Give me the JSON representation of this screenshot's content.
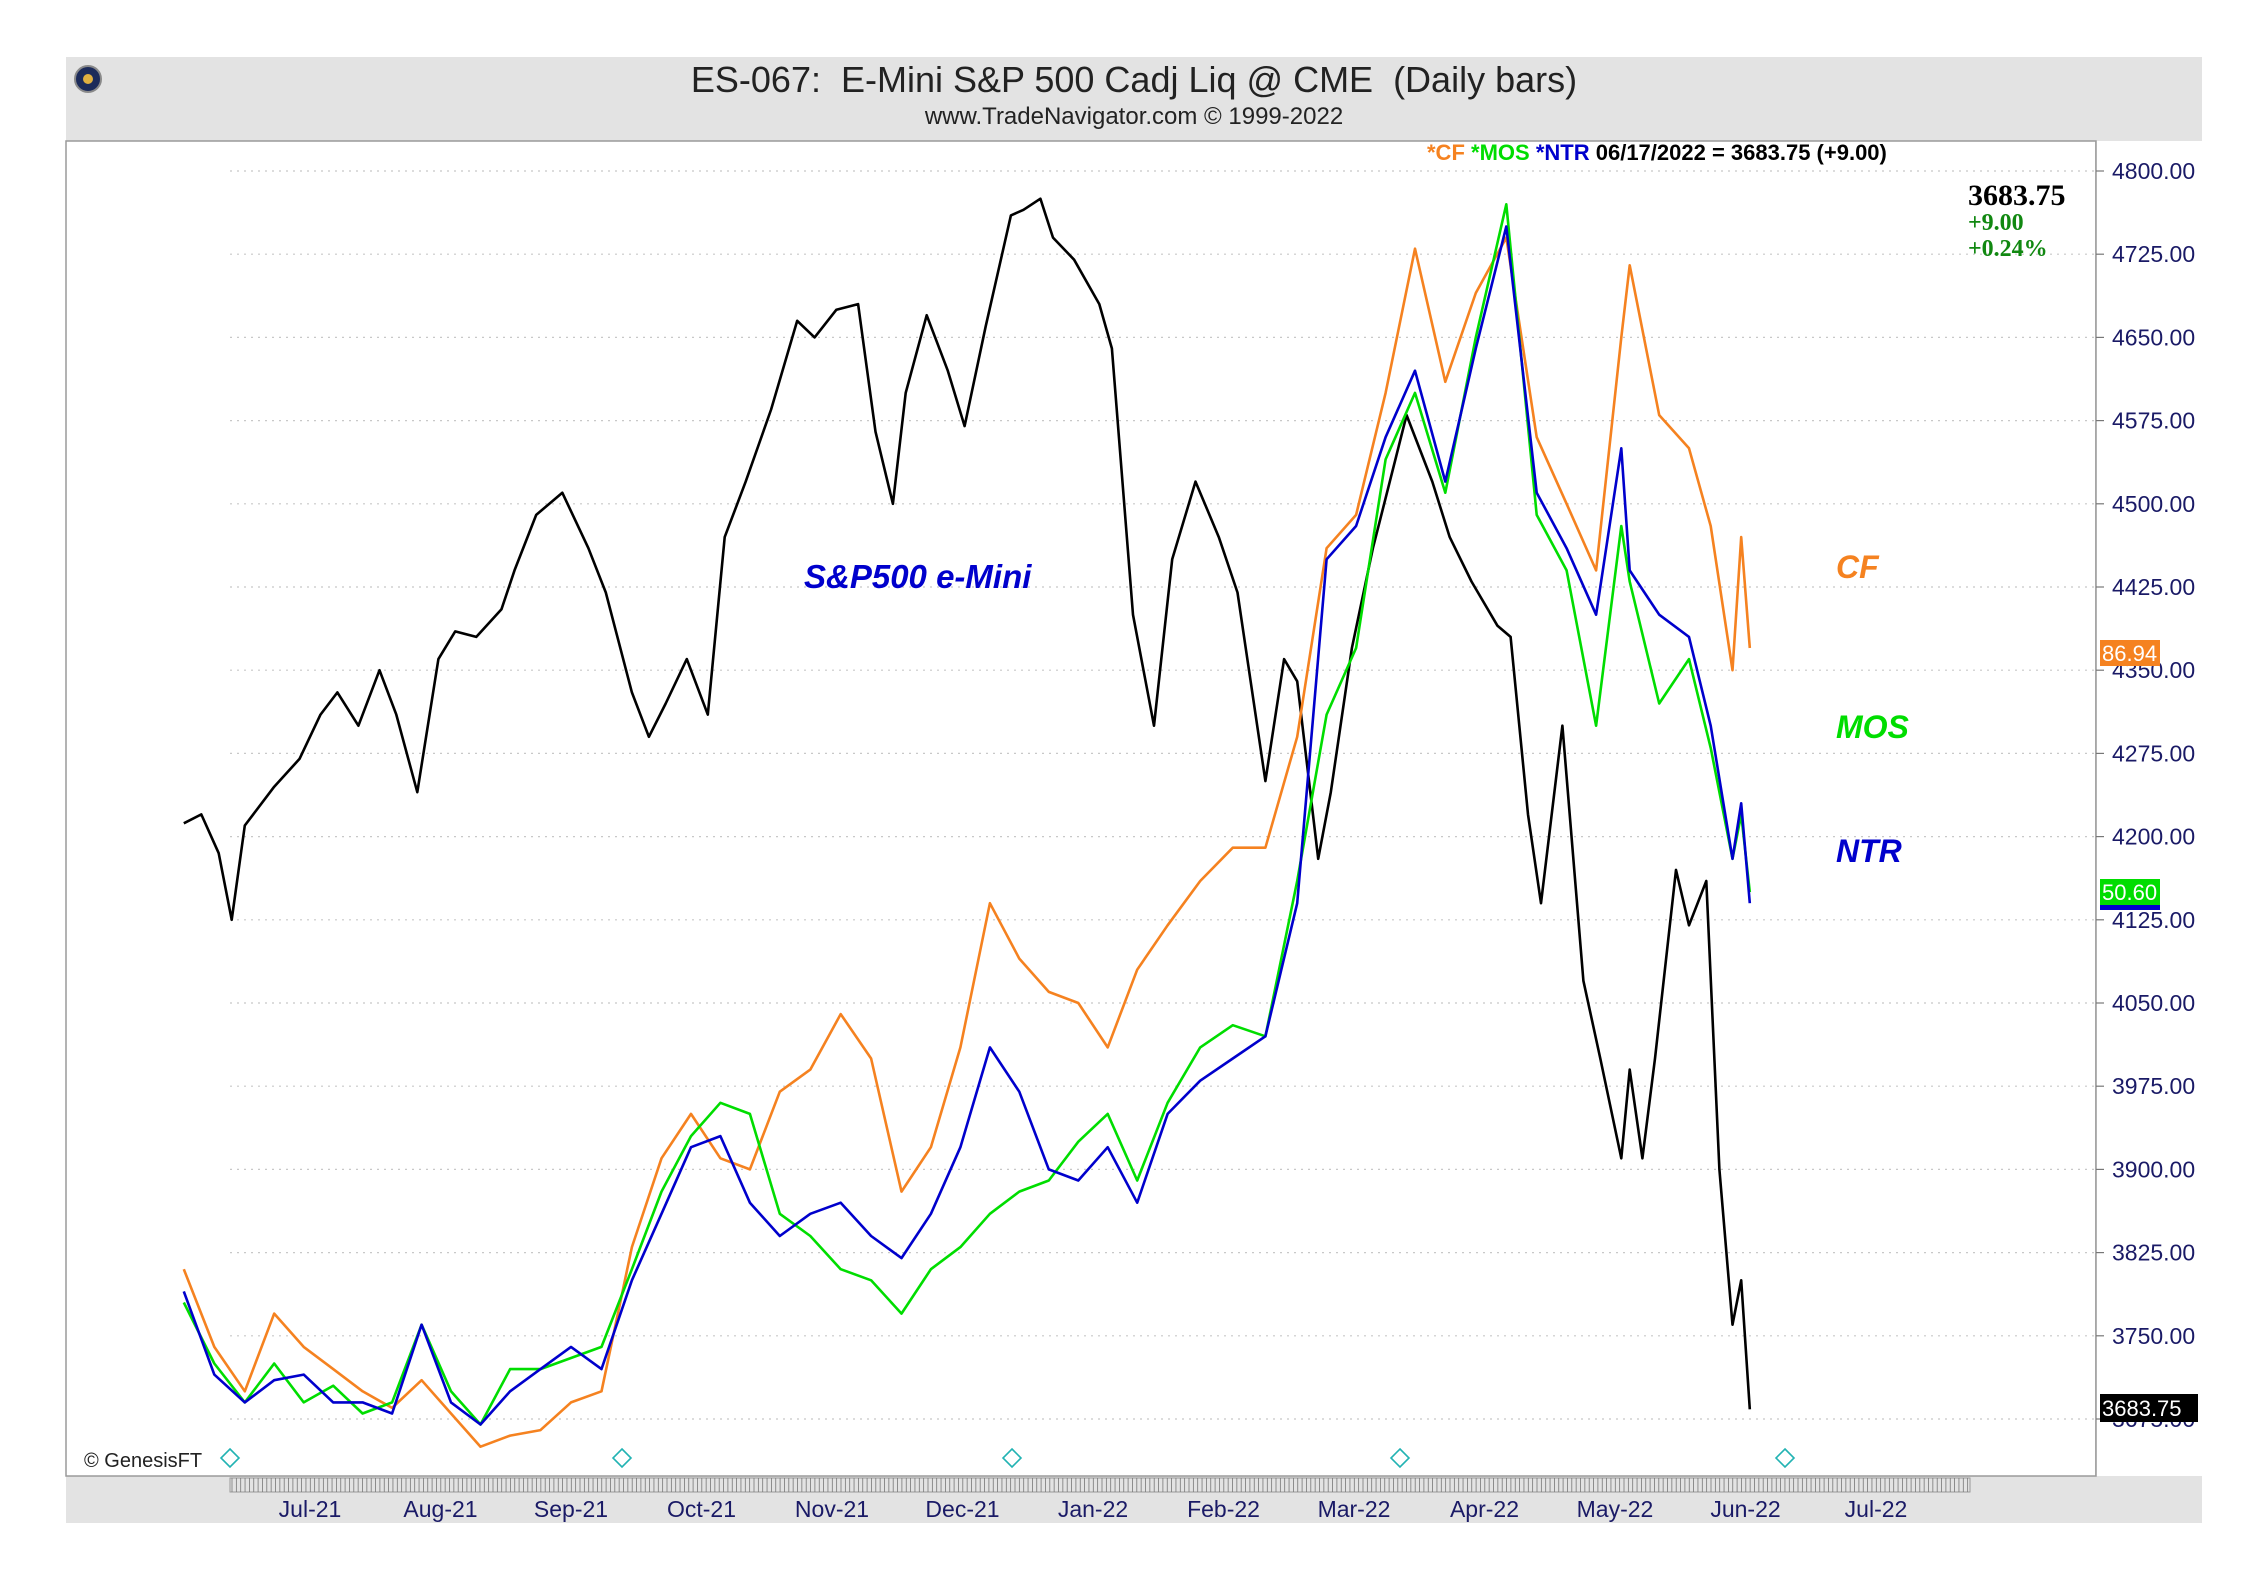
{
  "header": {
    "title": "ES-067:  E-Mini S&P 500 Cadj Liq @ CME  (Daily bars)",
    "subtitle": "www.TradeNavigator.com © 1999-2022"
  },
  "legend": {
    "cf": "*CF",
    "mos": "*MOS",
    "ntr": "*NTR",
    "readout": "06/17/2022 = 3683.75 (+9.00)"
  },
  "quote": {
    "last": "3683.75",
    "change": "+9.00",
    "pct": "+0.24%"
  },
  "labels": {
    "sp500": "S&P500 e-Mini",
    "cf": "CF",
    "mos": "MOS",
    "ntr": "NTR"
  },
  "badges": {
    "cf": "86.94",
    "mos": "50.60",
    "es": "3683.75"
  },
  "copyright": "© GenesisFT",
  "colors": {
    "es": "#000000",
    "cf": "#f58220",
    "mos": "#00dd00",
    "ntr": "#0000cc",
    "axis_text": "#1a1a66"
  },
  "chart_data": {
    "type": "line",
    "x_axis": {
      "ticks": [
        "Jul-21",
        "Aug-21",
        "Sep-21",
        "Oct-21",
        "Nov-21",
        "Dec-21",
        "Jan-22",
        "Feb-22",
        "Mar-22",
        "Apr-22",
        "May-22",
        "Jun-22",
        "Jul-22"
      ]
    },
    "y_axis": {
      "range": [
        3610,
        4810
      ],
      "ticks": [
        "4800.00",
        "4725.00",
        "4650.00",
        "4575.00",
        "4500.00",
        "4425.00",
        "4350.00",
        "4275.00",
        "4200.00",
        "4125.00",
        "4050.00",
        "3975.00",
        "3900.00",
        "3825.00",
        "3750.00",
        "3675.00"
      ]
    },
    "grid": true,
    "series": [
      {
        "name": "S&P500 e-Mini",
        "points": [
          [
            "2021-06-17",
            4212
          ],
          [
            "2021-06-21",
            4220
          ],
          [
            "2021-06-25",
            4185
          ],
          [
            "2021-06-28",
            4125
          ],
          [
            "2021-07-01",
            4210
          ],
          [
            "2021-07-08",
            4245
          ],
          [
            "2021-07-14",
            4270
          ],
          [
            "2021-07-19",
            4310
          ],
          [
            "2021-07-23",
            4330
          ],
          [
            "2021-07-28",
            4300
          ],
          [
            "2021-08-02",
            4350
          ],
          [
            "2021-08-06",
            4310
          ],
          [
            "2021-08-11",
            4240
          ],
          [
            "2021-08-16",
            4360
          ],
          [
            "2021-08-20",
            4385
          ],
          [
            "2021-08-25",
            4380
          ],
          [
            "2021-08-31",
            4405
          ],
          [
            "2021-09-03",
            4440
          ],
          [
            "2021-09-08",
            4490
          ],
          [
            "2021-09-14",
            4510
          ],
          [
            "2021-09-20",
            4460
          ],
          [
            "2021-09-24",
            4420
          ],
          [
            "2021-09-30",
            4330
          ],
          [
            "2021-10-04",
            4290
          ],
          [
            "2021-10-08",
            4320
          ],
          [
            "2021-10-13",
            4360
          ],
          [
            "2021-10-18",
            4310
          ],
          [
            "2021-10-22",
            4470
          ],
          [
            "2021-10-27",
            4520
          ],
          [
            "2021-11-02",
            4585
          ],
          [
            "2021-11-08",
            4665
          ],
          [
            "2021-11-12",
            4650
          ],
          [
            "2021-11-17",
            4675
          ],
          [
            "2021-11-22",
            4680
          ],
          [
            "2021-11-26",
            4565
          ],
          [
            "2021-11-30",
            4500
          ],
          [
            "2021-12-03",
            4600
          ],
          [
            "2021-12-08",
            4670
          ],
          [
            "2021-12-13",
            4620
          ],
          [
            "2021-12-17",
            4570
          ],
          [
            "2021-12-22",
            4660
          ],
          [
            "2021-12-28",
            4760
          ],
          [
            "2021-12-31",
            4765
          ],
          [
            "2022-01-04",
            4775
          ],
          [
            "2022-01-07",
            4740
          ],
          [
            "2022-01-12",
            4720
          ],
          [
            "2022-01-18",
            4680
          ],
          [
            "2022-01-21",
            4640
          ],
          [
            "2022-01-26",
            4400
          ],
          [
            "2022-01-31",
            4300
          ],
          [
            "2022-02-04",
            4450
          ],
          [
            "2022-02-09",
            4520
          ],
          [
            "2022-02-14",
            4470
          ],
          [
            "2022-02-18",
            4420
          ],
          [
            "2022-02-24",
            4250
          ],
          [
            "2022-02-28",
            4360
          ],
          [
            "2022-03-03",
            4340
          ],
          [
            "2022-03-08",
            4180
          ],
          [
            "2022-03-11",
            4240
          ],
          [
            "2022-03-16",
            4370
          ],
          [
            "2022-03-21",
            4460
          ],
          [
            "2022-03-25",
            4520
          ],
          [
            "2022-03-29",
            4580
          ],
          [
            "2022-04-04",
            4520
          ],
          [
            "2022-04-08",
            4470
          ],
          [
            "2022-04-13",
            4430
          ],
          [
            "2022-04-19",
            4390
          ],
          [
            "2022-04-22",
            4380
          ],
          [
            "2022-04-26",
            4220
          ],
          [
            "2022-04-29",
            4140
          ],
          [
            "2022-05-04",
            4300
          ],
          [
            "2022-05-09",
            4070
          ],
          [
            "2022-05-13",
            4000
          ],
          [
            "2022-05-18",
            3910
          ],
          [
            "2022-05-20",
            3990
          ],
          [
            "2022-05-23",
            3910
          ],
          [
            "2022-05-26",
            4000
          ],
          [
            "2022-05-31",
            4170
          ],
          [
            "2022-06-03",
            4120
          ],
          [
            "2022-06-07",
            4160
          ],
          [
            "2022-06-10",
            3900
          ],
          [
            "2022-06-13",
            3760
          ],
          [
            "2022-06-15",
            3800
          ],
          [
            "2022-06-17",
            3683.75
          ]
        ]
      },
      {
        "name": "CF",
        "points": [
          [
            "2021-06-17",
            3810
          ],
          [
            "2021-06-24",
            3740
          ],
          [
            "2021-07-01",
            3700
          ],
          [
            "2021-07-08",
            3770
          ],
          [
            "2021-07-15",
            3740
          ],
          [
            "2021-07-22",
            3720
          ],
          [
            "2021-07-29",
            3700
          ],
          [
            "2021-08-05",
            3685
          ],
          [
            "2021-08-12",
            3710
          ],
          [
            "2021-08-19",
            3680
          ],
          [
            "2021-08-26",
            3650
          ],
          [
            "2021-09-02",
            3660
          ],
          [
            "2021-09-09",
            3665
          ],
          [
            "2021-09-16",
            3690
          ],
          [
            "2021-09-23",
            3700
          ],
          [
            "2021-09-30",
            3830
          ],
          [
            "2021-10-07",
            3910
          ],
          [
            "2021-10-14",
            3950
          ],
          [
            "2021-10-21",
            3910
          ],
          [
            "2021-10-28",
            3900
          ],
          [
            "2021-11-04",
            3970
          ],
          [
            "2021-11-11",
            3990
          ],
          [
            "2021-11-18",
            4040
          ],
          [
            "2021-11-25",
            4000
          ],
          [
            "2021-12-02",
            3880
          ],
          [
            "2021-12-09",
            3920
          ],
          [
            "2021-12-16",
            4010
          ],
          [
            "2021-12-23",
            4140
          ],
          [
            "2021-12-30",
            4090
          ],
          [
            "2022-01-06",
            4060
          ],
          [
            "2022-01-13",
            4050
          ],
          [
            "2022-01-20",
            4010
          ],
          [
            "2022-01-27",
            4080
          ],
          [
            "2022-02-03",
            4120
          ],
          [
            "2022-02-10",
            4160
          ],
          [
            "2022-02-17",
            4190
          ],
          [
            "2022-02-24",
            4190
          ],
          [
            "2022-03-03",
            4290
          ],
          [
            "2022-03-10",
            4460
          ],
          [
            "2022-03-17",
            4490
          ],
          [
            "2022-03-24",
            4600
          ],
          [
            "2022-03-31",
            4730
          ],
          [
            "2022-04-07",
            4610
          ],
          [
            "2022-04-14",
            4690
          ],
          [
            "2022-04-21",
            4740
          ],
          [
            "2022-04-28",
            4560
          ],
          [
            "2022-05-05",
            4500
          ],
          [
            "2022-05-12",
            4440
          ],
          [
            "2022-05-18",
            4650
          ],
          [
            "2022-05-20",
            4715
          ],
          [
            "2022-05-27",
            4580
          ],
          [
            "2022-06-03",
            4550
          ],
          [
            "2022-06-08",
            4480
          ],
          [
            "2022-06-13",
            4350
          ],
          [
            "2022-06-15",
            4470
          ],
          [
            "2022-06-17",
            4370
          ]
        ]
      },
      {
        "name": "MOS",
        "points": [
          [
            "2021-06-17",
            3780
          ],
          [
            "2021-06-24",
            3725
          ],
          [
            "2021-07-01",
            3690
          ],
          [
            "2021-07-08",
            3725
          ],
          [
            "2021-07-15",
            3690
          ],
          [
            "2021-07-22",
            3705
          ],
          [
            "2021-07-29",
            3680
          ],
          [
            "2021-08-05",
            3690
          ],
          [
            "2021-08-12",
            3760
          ],
          [
            "2021-08-19",
            3700
          ],
          [
            "2021-08-26",
            3670
          ],
          [
            "2021-09-02",
            3720
          ],
          [
            "2021-09-09",
            3720
          ],
          [
            "2021-09-16",
            3730
          ],
          [
            "2021-09-23",
            3740
          ],
          [
            "2021-09-30",
            3810
          ],
          [
            "2021-10-07",
            3880
          ],
          [
            "2021-10-14",
            3930
          ],
          [
            "2021-10-21",
            3960
          ],
          [
            "2021-10-28",
            3950
          ],
          [
            "2021-11-04",
            3860
          ],
          [
            "2021-11-11",
            3840
          ],
          [
            "2021-11-18",
            3810
          ],
          [
            "2021-11-25",
            3800
          ],
          [
            "2021-12-02",
            3770
          ],
          [
            "2021-12-09",
            3810
          ],
          [
            "2021-12-16",
            3830
          ],
          [
            "2021-12-23",
            3860
          ],
          [
            "2021-12-30",
            3880
          ],
          [
            "2022-01-06",
            3890
          ],
          [
            "2022-01-13",
            3925
          ],
          [
            "2022-01-20",
            3950
          ],
          [
            "2022-01-27",
            3890
          ],
          [
            "2022-02-03",
            3960
          ],
          [
            "2022-02-10",
            4010
          ],
          [
            "2022-02-17",
            4030
          ],
          [
            "2022-02-24",
            4020
          ],
          [
            "2022-03-03",
            4160
          ],
          [
            "2022-03-10",
            4310
          ],
          [
            "2022-03-17",
            4370
          ],
          [
            "2022-03-24",
            4540
          ],
          [
            "2022-03-31",
            4600
          ],
          [
            "2022-04-07",
            4510
          ],
          [
            "2022-04-14",
            4650
          ],
          [
            "2022-04-21",
            4770
          ],
          [
            "2022-04-28",
            4490
          ],
          [
            "2022-05-05",
            4440
          ],
          [
            "2022-05-12",
            4300
          ],
          [
            "2022-05-18",
            4480
          ],
          [
            "2022-05-20",
            4430
          ],
          [
            "2022-05-27",
            4320
          ],
          [
            "2022-06-03",
            4360
          ],
          [
            "2022-06-08",
            4280
          ],
          [
            "2022-06-13",
            4180
          ],
          [
            "2022-06-15",
            4220
          ],
          [
            "2022-06-17",
            4150
          ]
        ]
      },
      {
        "name": "NTR",
        "points": [
          [
            "2021-06-17",
            3790
          ],
          [
            "2021-06-24",
            3715
          ],
          [
            "2021-07-01",
            3690
          ],
          [
            "2021-07-08",
            3710
          ],
          [
            "2021-07-15",
            3715
          ],
          [
            "2021-07-22",
            3690
          ],
          [
            "2021-07-29",
            3690
          ],
          [
            "2021-08-05",
            3680
          ],
          [
            "2021-08-12",
            3760
          ],
          [
            "2021-08-19",
            3690
          ],
          [
            "2021-08-26",
            3670
          ],
          [
            "2021-09-02",
            3700
          ],
          [
            "2021-09-09",
            3720
          ],
          [
            "2021-09-16",
            3740
          ],
          [
            "2021-09-23",
            3720
          ],
          [
            "2021-09-30",
            3800
          ],
          [
            "2021-10-07",
            3860
          ],
          [
            "2021-10-14",
            3920
          ],
          [
            "2021-10-21",
            3930
          ],
          [
            "2021-10-28",
            3870
          ],
          [
            "2021-11-04",
            3840
          ],
          [
            "2021-11-11",
            3860
          ],
          [
            "2021-11-18",
            3870
          ],
          [
            "2021-11-25",
            3840
          ],
          [
            "2021-12-02",
            3820
          ],
          [
            "2021-12-09",
            3860
          ],
          [
            "2021-12-16",
            3920
          ],
          [
            "2021-12-23",
            4010
          ],
          [
            "2021-12-30",
            3970
          ],
          [
            "2022-01-06",
            3900
          ],
          [
            "2022-01-13",
            3890
          ],
          [
            "2022-01-20",
            3920
          ],
          [
            "2022-01-27",
            3870
          ],
          [
            "2022-02-03",
            3950
          ],
          [
            "2022-02-10",
            3980
          ],
          [
            "2022-02-17",
            4000
          ],
          [
            "2022-02-24",
            4020
          ],
          [
            "2022-03-03",
            4140
          ],
          [
            "2022-03-10",
            4450
          ],
          [
            "2022-03-17",
            4480
          ],
          [
            "2022-03-24",
            4560
          ],
          [
            "2022-03-31",
            4620
          ],
          [
            "2022-04-07",
            4520
          ],
          [
            "2022-04-14",
            4640
          ],
          [
            "2022-04-21",
            4750
          ],
          [
            "2022-04-28",
            4510
          ],
          [
            "2022-05-05",
            4460
          ],
          [
            "2022-05-12",
            4400
          ],
          [
            "2022-05-18",
            4550
          ],
          [
            "2022-05-20",
            4440
          ],
          [
            "2022-05-27",
            4400
          ],
          [
            "2022-06-03",
            4380
          ],
          [
            "2022-06-08",
            4300
          ],
          [
            "2022-06-13",
            4180
          ],
          [
            "2022-06-15",
            4230
          ],
          [
            "2022-06-17",
            4140
          ]
        ]
      }
    ]
  }
}
